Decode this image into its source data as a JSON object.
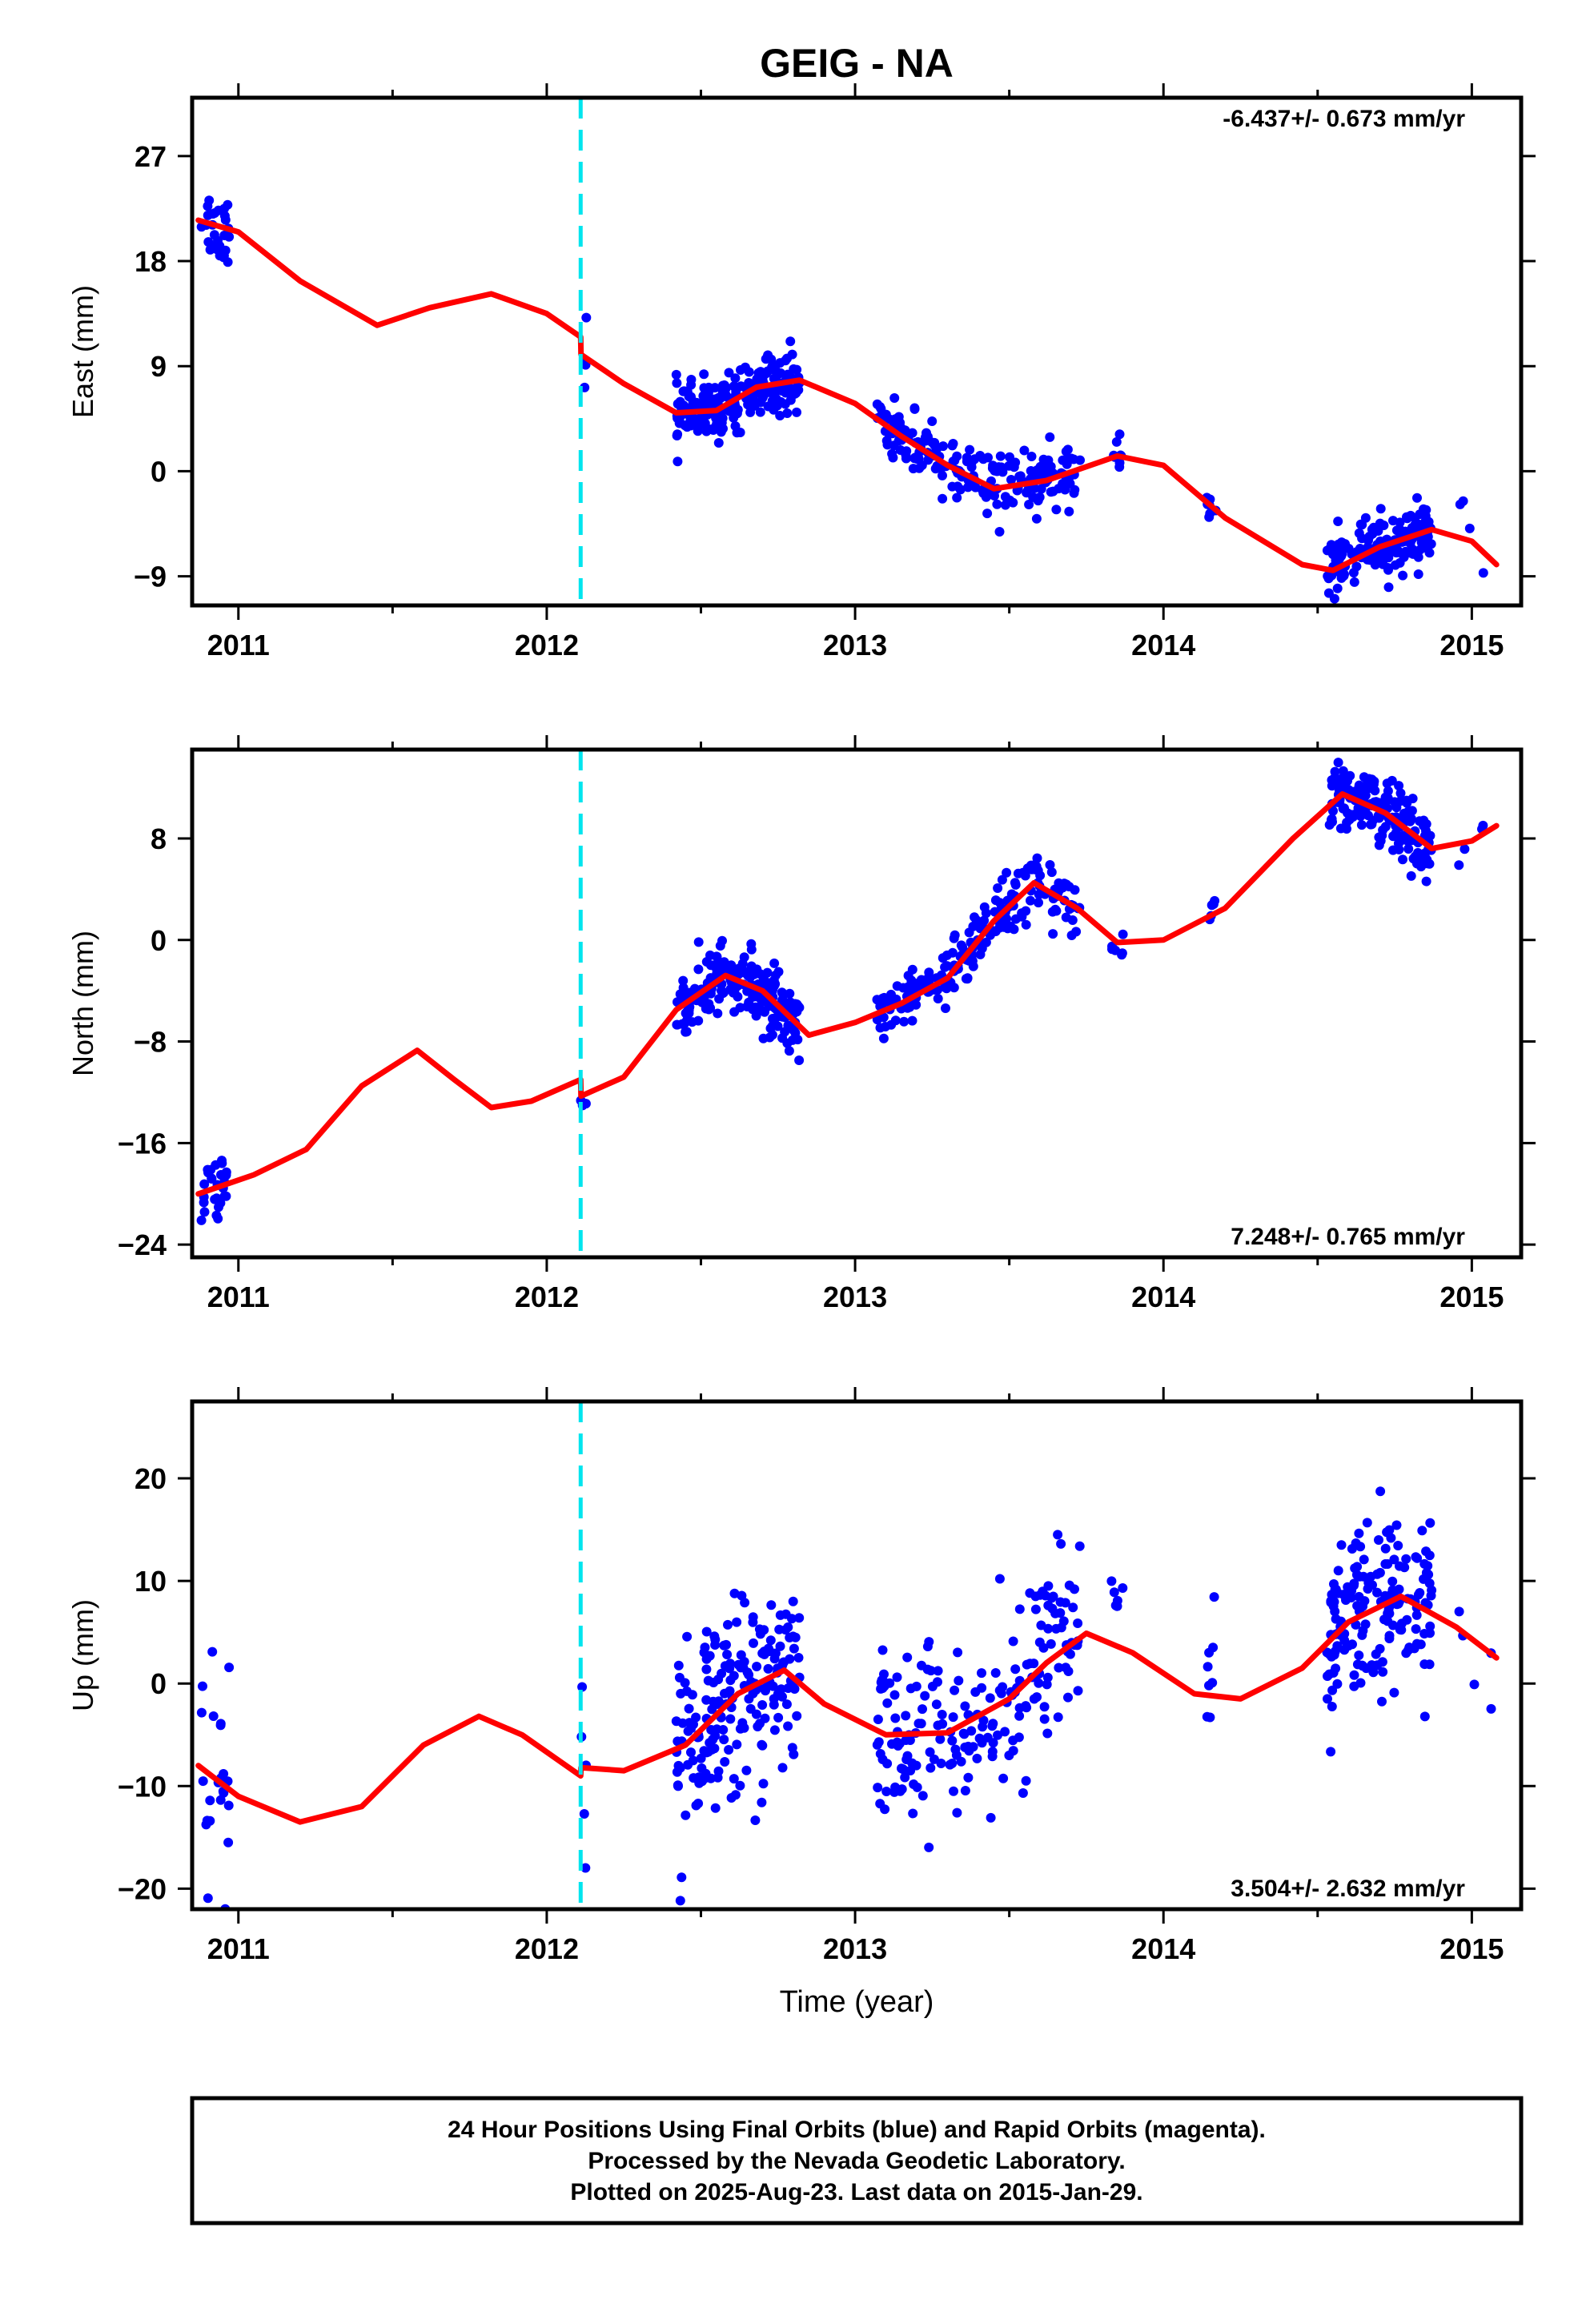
{
  "title": "GEIG - NA",
  "xlabel": "Time (year)",
  "footer": {
    "line1": "24 Hour Positions Using Final Orbits (blue) and Rapid Orbits (magenta).",
    "line2": "Processed by the Nevada Geodetic Laboratory.",
    "line3": "Plotted on 2025-Aug-23. Last data on 2015-Jan-29."
  },
  "colors": {
    "data": "#0000ff",
    "model": "#ff0000",
    "break": "#00e5ee",
    "frame": "#000000"
  },
  "chart_data": [
    {
      "type": "scatter",
      "ylabel": "East (mm)",
      "rate_text": "-6.437+/- 0.673 mm/yr",
      "xlim": [
        2010.85,
        2015.16
      ],
      "ylim": [
        -11.5,
        32
      ],
      "xticks": [
        2011,
        2012,
        2013,
        2014,
        2015
      ],
      "yticks": [
        -9,
        0,
        9,
        18,
        27
      ],
      "ytick_labels": [
        "−9",
        "0",
        "9",
        "18",
        "27"
      ],
      "break_x": 2012.11,
      "clusters": [
        {
          "x0": 2010.88,
          "x1": 2010.97,
          "n": 28,
          "off": 0,
          "sd": 1.6
        },
        {
          "x0": 2012.11,
          "x1": 2012.13,
          "n": 4,
          "off": 0,
          "sd": 3.5
        },
        {
          "x0": 2012.42,
          "x1": 2012.82,
          "n": 230,
          "off": 0,
          "sd": 1.2
        },
        {
          "x0": 2013.07,
          "x1": 2013.73,
          "n": 200,
          "off": 0,
          "sd": 1.3
        },
        {
          "x0": 2013.83,
          "x1": 2013.87,
          "n": 8,
          "off": 0,
          "sd": 1.0
        },
        {
          "x0": 2014.14,
          "x1": 2014.17,
          "n": 7,
          "off": 0,
          "sd": 1.0
        },
        {
          "x0": 2014.53,
          "x1": 2014.87,
          "n": 170,
          "off": 0,
          "sd": 1.3
        },
        {
          "x0": 2014.95,
          "x1": 2015.08,
          "n": 4,
          "off": 0,
          "sd": 2.0
        }
      ],
      "model_points": [
        [
          2010.87,
          21.5
        ],
        [
          2011.0,
          20.5
        ],
        [
          2011.2,
          16.3
        ],
        [
          2011.45,
          12.5
        ],
        [
          2011.62,
          14.0
        ],
        [
          2011.82,
          15.2
        ],
        [
          2012.0,
          13.5
        ],
        [
          2012.11,
          11.5
        ],
        [
          2012.111,
          10.0
        ],
        [
          2012.25,
          7.5
        ],
        [
          2012.42,
          5.0
        ],
        [
          2012.55,
          5.2
        ],
        [
          2012.68,
          7.2
        ],
        [
          2012.82,
          7.8
        ],
        [
          2013.0,
          5.8
        ],
        [
          2013.15,
          3.0
        ],
        [
          2013.3,
          0.5
        ],
        [
          2013.45,
          -1.5
        ],
        [
          2013.62,
          -0.8
        ],
        [
          2013.85,
          1.3
        ],
        [
          2014.0,
          0.5
        ],
        [
          2014.2,
          -4.0
        ],
        [
          2014.45,
          -8.0
        ],
        [
          2014.55,
          -8.5
        ],
        [
          2014.7,
          -6.5
        ],
        [
          2014.87,
          -5.0
        ],
        [
          2015.0,
          -6.0
        ],
        [
          2015.08,
          -8.0
        ]
      ]
    },
    {
      "type": "scatter",
      "ylabel": "North (mm)",
      "rate_text": "7.248+/- 0.765 mm/yr",
      "xlim": [
        2010.85,
        2015.16
      ],
      "ylim": [
        -25,
        15
      ],
      "xticks": [
        2011,
        2012,
        2013,
        2014,
        2015
      ],
      "yticks": [
        -24,
        -16,
        -8,
        0,
        8
      ],
      "ytick_labels": [
        "−24",
        "−16",
        "−8",
        "0",
        "8"
      ],
      "break_x": 2012.11,
      "clusters": [
        {
          "x0": 2010.88,
          "x1": 2010.97,
          "n": 30,
          "off": 0,
          "sd": 1.2
        },
        {
          "x0": 2012.11,
          "x1": 2012.13,
          "n": 4,
          "off": -1,
          "sd": 0.8
        },
        {
          "x0": 2012.42,
          "x1": 2012.82,
          "n": 220,
          "off": 0,
          "sd": 1.3
        },
        {
          "x0": 2013.07,
          "x1": 2013.73,
          "n": 200,
          "off": 0,
          "sd": 1.2
        },
        {
          "x0": 2013.83,
          "x1": 2013.87,
          "n": 6,
          "off": -0.5,
          "sd": 0.8
        },
        {
          "x0": 2014.14,
          "x1": 2014.17,
          "n": 6,
          "off": 0,
          "sd": 1.0
        },
        {
          "x0": 2014.53,
          "x1": 2014.87,
          "n": 170,
          "off": 0,
          "sd": 1.3
        },
        {
          "x0": 2014.95,
          "x1": 2015.08,
          "n": 4,
          "off": 0,
          "sd": 1.0
        }
      ],
      "model_points": [
        [
          2010.87,
          -20.0
        ],
        [
          2011.05,
          -18.5
        ],
        [
          2011.22,
          -16.5
        ],
        [
          2011.4,
          -11.5
        ],
        [
          2011.58,
          -8.7
        ],
        [
          2011.7,
          -11.0
        ],
        [
          2011.82,
          -13.2
        ],
        [
          2011.95,
          -12.7
        ],
        [
          2012.11,
          -11.0
        ],
        [
          2012.111,
          -12.3
        ],
        [
          2012.25,
          -10.8
        ],
        [
          2012.42,
          -5.5
        ],
        [
          2012.58,
          -2.8
        ],
        [
          2012.7,
          -4.0
        ],
        [
          2012.85,
          -7.5
        ],
        [
          2013.0,
          -6.5
        ],
        [
          2013.15,
          -5.0
        ],
        [
          2013.3,
          -3.0
        ],
        [
          2013.45,
          1.5
        ],
        [
          2013.58,
          4.5
        ],
        [
          2013.72,
          2.5
        ],
        [
          2013.85,
          -0.2
        ],
        [
          2014.0,
          0.0
        ],
        [
          2014.2,
          2.5
        ],
        [
          2014.42,
          8.0
        ],
        [
          2014.58,
          11.5
        ],
        [
          2014.72,
          10.0
        ],
        [
          2014.87,
          7.2
        ],
        [
          2015.0,
          7.8
        ],
        [
          2015.08,
          9.0
        ]
      ]
    },
    {
      "type": "scatter",
      "ylabel": "Up (mm)",
      "rate_text": "3.504+/- 2.632 mm/yr",
      "xlim": [
        2010.85,
        2015.16
      ],
      "ylim": [
        -22,
        27.5
      ],
      "xticks": [
        2011,
        2012,
        2013,
        2014,
        2015
      ],
      "yticks": [
        -20,
        -10,
        0,
        10,
        20
      ],
      "ytick_labels": [
        "−20",
        "−10",
        "0",
        "10",
        "20"
      ],
      "break_x": 2012.11,
      "clusters": [
        {
          "x0": 2010.88,
          "x1": 2010.97,
          "n": 24,
          "off": -1,
          "sd": 6.0
        },
        {
          "x0": 2012.11,
          "x1": 2012.13,
          "n": 5,
          "off": 1,
          "sd": 4.5
        },
        {
          "x0": 2012.42,
          "x1": 2012.82,
          "n": 200,
          "off": 0,
          "sd": 4.5
        },
        {
          "x0": 2013.07,
          "x1": 2013.73,
          "n": 200,
          "off": 0,
          "sd": 4.5
        },
        {
          "x0": 2013.83,
          "x1": 2013.87,
          "n": 6,
          "off": 3,
          "sd": 3.0
        },
        {
          "x0": 2014.14,
          "x1": 2014.17,
          "n": 8,
          "off": 2,
          "sd": 3.5
        },
        {
          "x0": 2014.53,
          "x1": 2014.87,
          "n": 170,
          "off": 0,
          "sd": 4.5
        },
        {
          "x0": 2014.95,
          "x1": 2015.08,
          "n": 5,
          "off": -1,
          "sd": 3.5
        }
      ],
      "model_points": [
        [
          2010.87,
          -8.0
        ],
        [
          2011.0,
          -11.0
        ],
        [
          2011.2,
          -13.5
        ],
        [
          2011.4,
          -12.0
        ],
        [
          2011.6,
          -6.0
        ],
        [
          2011.78,
          -3.2
        ],
        [
          2011.92,
          -5.0
        ],
        [
          2012.11,
          -9.0
        ],
        [
          2012.111,
          -8.2
        ],
        [
          2012.25,
          -8.5
        ],
        [
          2012.45,
          -6.0
        ],
        [
          2012.62,
          -1.0
        ],
        [
          2012.77,
          1.3
        ],
        [
          2012.9,
          -2.0
        ],
        [
          2013.1,
          -5.0
        ],
        [
          2013.3,
          -4.8
        ],
        [
          2013.5,
          -1.5
        ],
        [
          2013.62,
          2.0
        ],
        [
          2013.75,
          4.9
        ],
        [
          2013.9,
          3.0
        ],
        [
          2014.1,
          -1.0
        ],
        [
          2014.25,
          -1.5
        ],
        [
          2014.45,
          1.5
        ],
        [
          2014.6,
          6.0
        ],
        [
          2014.77,
          8.5
        ],
        [
          2014.95,
          5.5
        ],
        [
          2015.08,
          2.5
        ]
      ]
    }
  ]
}
